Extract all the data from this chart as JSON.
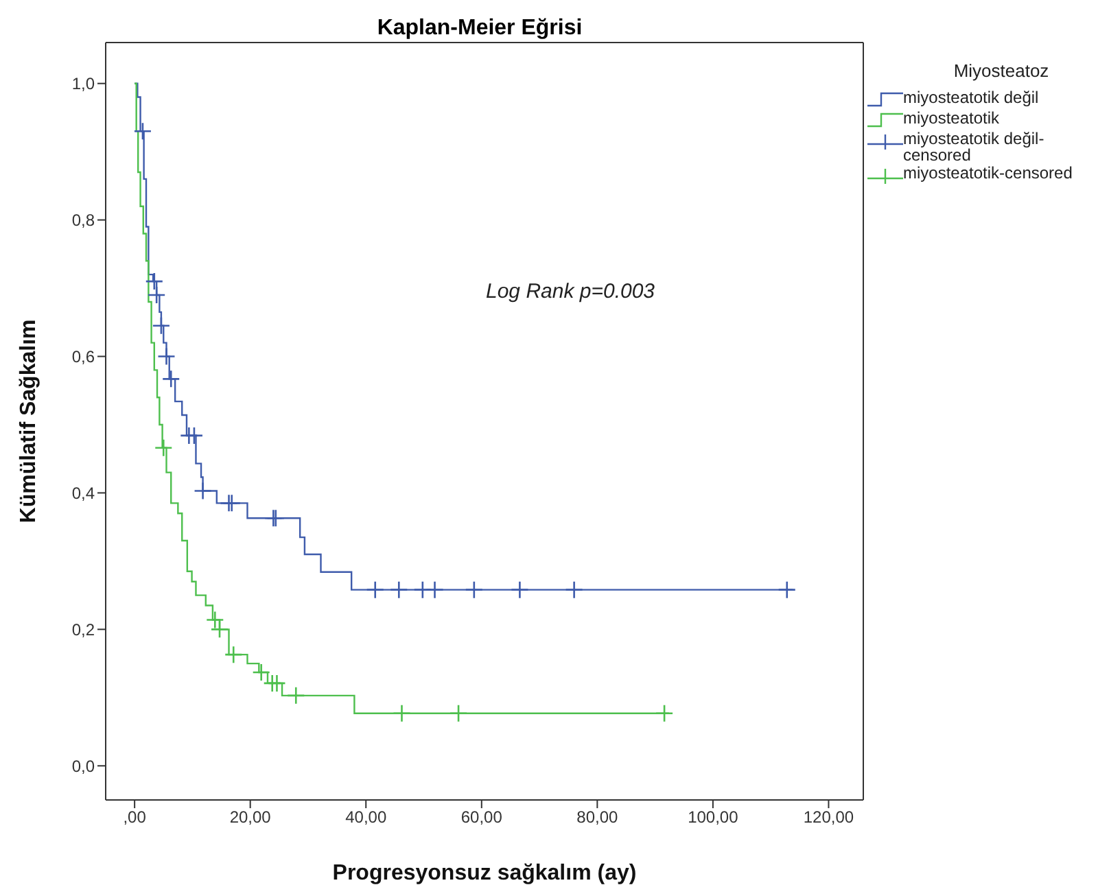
{
  "chart_data": {
    "type": "step",
    "title": "Kaplan-Meier Eğrisi",
    "xlabel": "Progresyonsuz sağkalım (ay)",
    "ylabel": "Kümülatif Sağkalım",
    "legend_title": "Miyosteatoz",
    "legend": "right",
    "grid": false,
    "xlim": [
      -5,
      126
    ],
    "xticks": [
      {
        "value": 0,
        "label": ",00"
      },
      {
        "value": 20,
        "label": "20,00"
      },
      {
        "value": 40,
        "label": "40,00"
      },
      {
        "value": 60,
        "label": "60,00"
      },
      {
        "value": 80,
        "label": "80,00"
      },
      {
        "value": 100,
        "label": "100,00"
      },
      {
        "value": 120,
        "label": "120,00"
      }
    ],
    "ylim": [
      -0.05,
      1.06
    ],
    "yticks": [
      {
        "value": 0,
        "label": "0,0"
      },
      {
        "value": 0.2,
        "label": "0,2"
      },
      {
        "value": 0.4,
        "label": "0,4"
      },
      {
        "value": 0.6,
        "label": "0,6"
      },
      {
        "value": 0.8,
        "label": "0,8"
      },
      {
        "value": 1,
        "label": "1,0"
      }
    ],
    "annotations": [
      "Log Rank  p=0.003"
    ],
    "series": [
      {
        "name": "miyosteatotik değil",
        "color": "#3e5bab",
        "x": [
          0,
          0.5,
          1.0,
          1.6,
          2.0,
          2.4,
          3.2,
          3.8,
          4.3,
          4.6,
          5.0,
          5.5,
          6.0,
          7.0,
          8.2,
          9.0,
          10.6,
          11.5,
          11.8,
          14.2,
          19.5,
          28.6,
          29.4,
          32.2,
          37.5,
          113.8
        ],
        "values": [
          1.0,
          0.98,
          0.93,
          0.86,
          0.79,
          0.72,
          0.71,
          0.69,
          0.665,
          0.645,
          0.62,
          0.6,
          0.567,
          0.534,
          0.514,
          0.484,
          0.443,
          0.423,
          0.403,
          0.385,
          0.363,
          0.335,
          0.31,
          0.284,
          0.258,
          0.258
        ]
      },
      {
        "name": "miyosteatotik",
        "color": "#4dbf4d",
        "x": [
          0,
          0.3,
          0.6,
          1.0,
          1.5,
          2.0,
          2.4,
          2.9,
          3.4,
          3.9,
          4.3,
          4.8,
          5.5,
          6.3,
          7.5,
          8.2,
          9.1,
          9.9,
          10.6,
          12.3,
          13.5,
          14.7,
          16.3,
          19.5,
          21.5,
          23.0,
          25.5,
          38.0,
          92.4
        ],
        "values": [
          1.0,
          0.93,
          0.87,
          0.82,
          0.78,
          0.74,
          0.68,
          0.62,
          0.58,
          0.54,
          0.5,
          0.466,
          0.43,
          0.385,
          0.37,
          0.33,
          0.285,
          0.27,
          0.25,
          0.235,
          0.214,
          0.2,
          0.163,
          0.15,
          0.137,
          0.121,
          0.103,
          0.077,
          0.077
        ]
      },
      {
        "name": "miyosteatotik değil-censored",
        "type": "scatter",
        "marker": "cross",
        "color": "#3e5bab",
        "x": [
          1.4,
          3.4,
          3.8,
          4.6,
          5.5,
          6.3,
          9.4,
          10.3,
          11.8,
          16.3,
          16.8,
          24.0,
          24.4,
          41.6,
          45.7,
          49.8,
          51.9,
          58.7,
          66.6,
          76.0,
          112.8
        ],
        "values": [
          0.93,
          0.71,
          0.69,
          0.645,
          0.6,
          0.567,
          0.484,
          0.484,
          0.403,
          0.385,
          0.385,
          0.363,
          0.363,
          0.258,
          0.258,
          0.258,
          0.258,
          0.258,
          0.258,
          0.258,
          0.258
        ]
      },
      {
        "name": "miyosteatotik-censored",
        "type": "scatter",
        "marker": "cross",
        "color": "#4dbf4d",
        "x": [
          5.0,
          13.9,
          14.7,
          17.1,
          21.9,
          23.8,
          24.6,
          27.9,
          46.2,
          56.0,
          91.6
        ],
        "values": [
          0.466,
          0.214,
          0.2,
          0.163,
          0.137,
          0.121,
          0.121,
          0.103,
          0.077,
          0.077,
          0.077
        ]
      }
    ]
  }
}
